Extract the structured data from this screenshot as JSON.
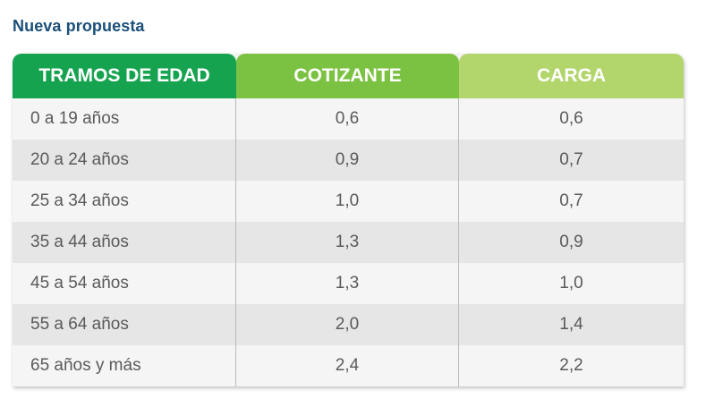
{
  "title": "Nueva propuesta",
  "colors": {
    "title": "#1b4f7a",
    "header_col1": "#16a34f",
    "header_col2": "#7cc242",
    "header_col3": "#b2d66c"
  },
  "table": {
    "headers": [
      "TRAMOS DE EDAD",
      "COTIZANTE",
      "CARGA"
    ],
    "rows": [
      [
        "0 a 19 años",
        "0,6",
        "0,6"
      ],
      [
        "20 a 24 años",
        "0,9",
        "0,7"
      ],
      [
        "25 a 34 años",
        "1,0",
        "0,7"
      ],
      [
        "35 a 44 años",
        "1,3",
        "0,9"
      ],
      [
        "45 a 54 años",
        "1,3",
        "1,0"
      ],
      [
        "55 a 64 años",
        "2,0",
        "1,4"
      ],
      [
        "65 años y más",
        "2,4",
        "2,2"
      ]
    ]
  }
}
